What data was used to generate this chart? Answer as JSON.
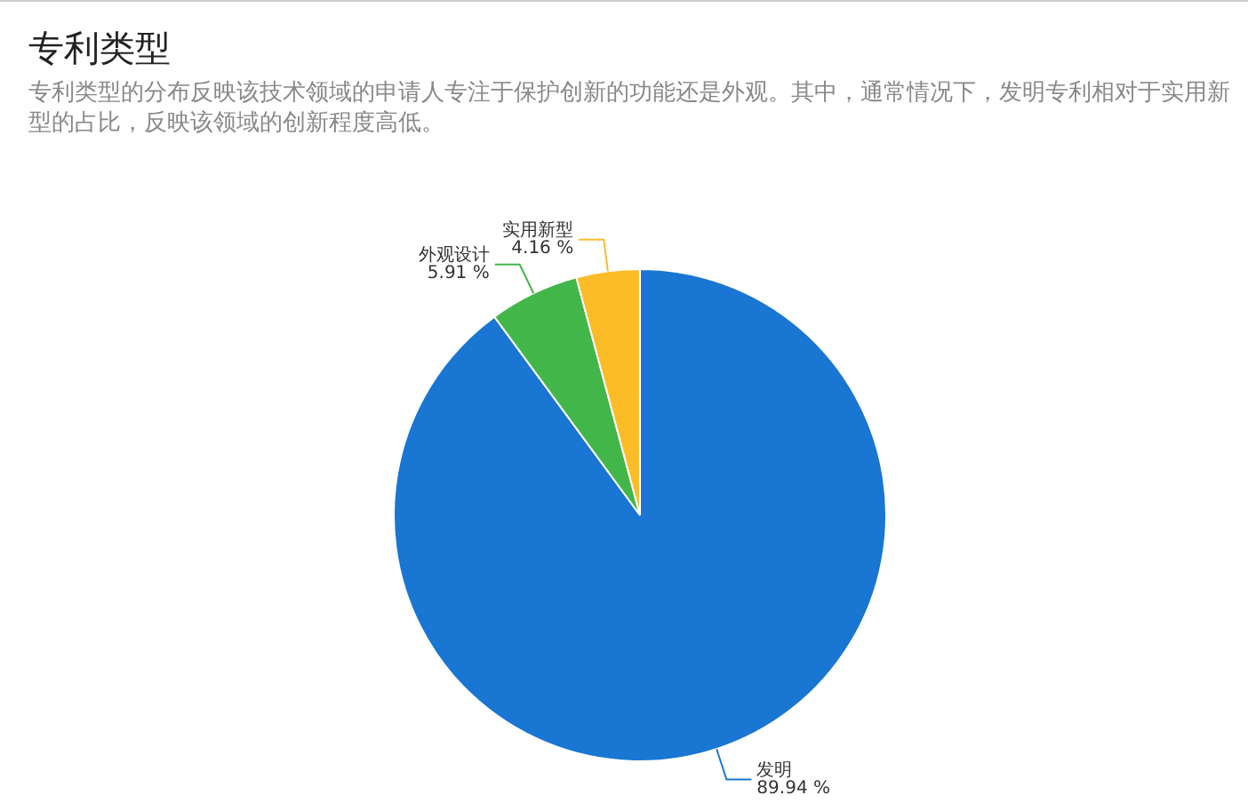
{
  "chart_data": {
    "type": "pie",
    "title": "专利类型",
    "subtitle": "专利类型的分布反映该技术领域的申请人专注于保护创新的功能还是外观。其中，通常情况下，发明专利相对于实用新型的占比，反映该领域的创新程度高低。",
    "categories": [
      "发明",
      "外观设计",
      "实用新型"
    ],
    "values": [
      89.94,
      5.91,
      4.16
    ],
    "colors": [
      "#1976d2",
      "#43b649",
      "#fbbc28"
    ],
    "value_labels": [
      "89.94 %",
      "5.91 %",
      "4.16 %"
    ],
    "legend": false
  }
}
